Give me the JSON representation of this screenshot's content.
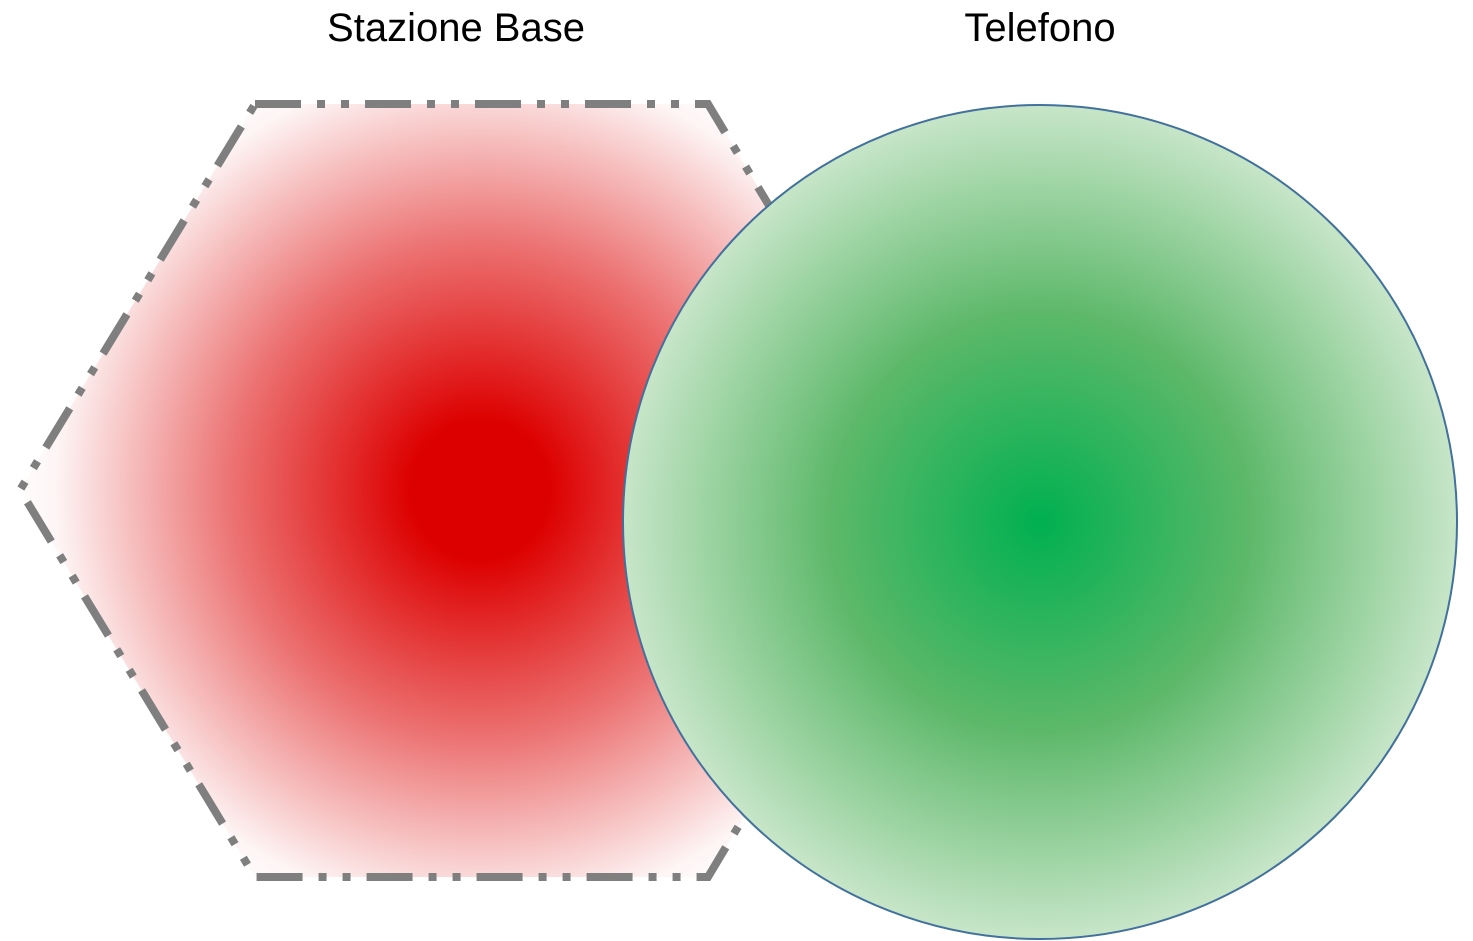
{
  "labels": {
    "base_station": "Stazione Base",
    "phone": "Telefono"
  },
  "colors": {
    "base_station_core": "#DD0000",
    "base_station_edge": "#FFFFFF",
    "hexagon_border": "#7F7F7F",
    "phone_core": "#00B050",
    "phone_edge": "#C8E6C9",
    "phone_border": "#41719C"
  }
}
